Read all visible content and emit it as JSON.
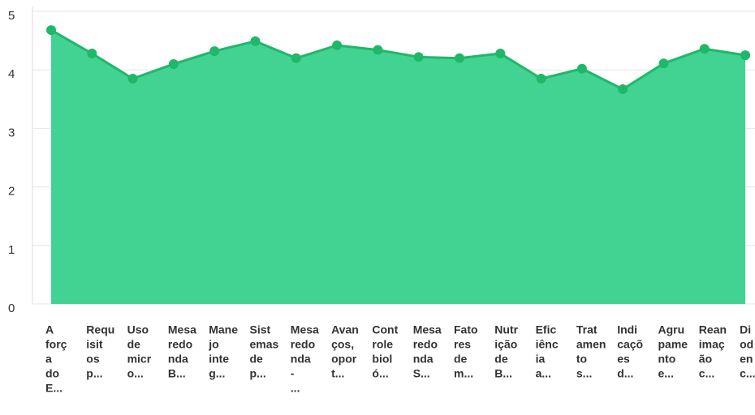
{
  "chart_data": {
    "type": "area",
    "categories": [
      [
        "A",
        "forç",
        "a",
        "do",
        "E..."
      ],
      [
        "Requ",
        "isit",
        "os",
        "p..."
      ],
      [
        "Uso",
        "de",
        "micr",
        "o..."
      ],
      [
        "Mesa",
        "redo",
        "nda",
        "B..."
      ],
      [
        "Mane",
        "jo",
        "inte",
        "g..."
      ],
      [
        "Sist",
        "emas",
        "de",
        "p..."
      ],
      [
        "Mesa",
        "redo",
        "nda",
        "-",
        "..."
      ],
      [
        "Avan",
        "ços,",
        "opor",
        "t..."
      ],
      [
        "Cont",
        "role",
        "biol",
        "ó..."
      ],
      [
        "Mesa",
        "redo",
        "nda",
        "S..."
      ],
      [
        "Fato",
        "res",
        "de",
        "m..."
      ],
      [
        "Nutr",
        "ição",
        "de",
        "B..."
      ],
      [
        "Efic",
        "iênc",
        "ia",
        "a..."
      ],
      [
        "Trat",
        "amen",
        "to",
        "s..."
      ],
      [
        "Indi",
        "caçõ",
        "es",
        "d..."
      ],
      [
        "Agru",
        "pame",
        "nto",
        "e..."
      ],
      [
        "Rean",
        "imaç",
        "ão",
        "c..."
      ],
      [
        "Di",
        "od",
        "en",
        "c..."
      ]
    ],
    "values": [
      4.68,
      4.28,
      3.85,
      4.1,
      4.32,
      4.49,
      4.2,
      4.42,
      4.34,
      4.22,
      4.2,
      4.28,
      3.85,
      4.02,
      3.67,
      4.11,
      4.36,
      4.25
    ],
    "color": "#1fb86a",
    "fill": "#42d392",
    "ylim": [
      0,
      5
    ],
    "yticks": [
      0,
      1,
      2,
      3,
      4,
      5
    ],
    "grid": true
  }
}
